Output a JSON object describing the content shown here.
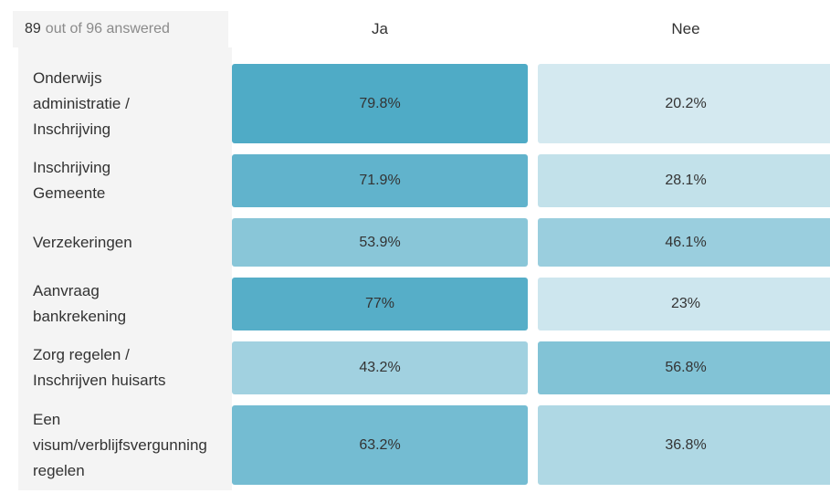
{
  "header": {
    "answered_count": "89",
    "answered_suffix": "out of 96 answered"
  },
  "columns": [
    "Ja",
    "Nee"
  ],
  "rows": [
    {
      "label": [
        "Onderwijs",
        "administratie /",
        "Inschrijving"
      ],
      "values": [
        "79.8%",
        "20.2%"
      ]
    },
    {
      "label": [
        "Inschrijving",
        "Gemeente"
      ],
      "values": [
        "71.9%",
        "28.1%"
      ]
    },
    {
      "label": [
        "Verzekeringen"
      ],
      "values": [
        "53.9%",
        "46.1%"
      ]
    },
    {
      "label": [
        "Aanvraag",
        "bankrekening"
      ],
      "values": [
        "77%",
        "23%"
      ]
    },
    {
      "label": [
        "Zorg regelen /",
        "Inschrijven huisarts"
      ],
      "values": [
        "43.2%",
        "56.8%"
      ]
    },
    {
      "label": [
        "Een",
        "visum/verblijfsvergunning",
        "regelen"
      ],
      "values": [
        "63.2%",
        "36.8%"
      ]
    }
  ],
  "chart_data": {
    "type": "heatmap",
    "title": "",
    "columns": [
      "Ja",
      "Nee"
    ],
    "categories": [
      "Onderwijs administratie / Inschrijving",
      "Inschrijving Gemeente",
      "Verzekeringen",
      "Aanvraag bankrekening",
      "Zorg regelen / Inschrijven huisarts",
      "Een visum/verblijfsvergunning regelen"
    ],
    "series": [
      {
        "name": "Ja",
        "values": [
          79.8,
          71.9,
          53.9,
          77,
          43.2,
          63.2
        ]
      },
      {
        "name": "Nee",
        "values": [
          20.2,
          28.1,
          46.1,
          23,
          56.8,
          36.8
        ]
      }
    ],
    "unit": "%",
    "colors": {
      "low": "#d4e9f0",
      "high": "#4fabc6"
    }
  }
}
